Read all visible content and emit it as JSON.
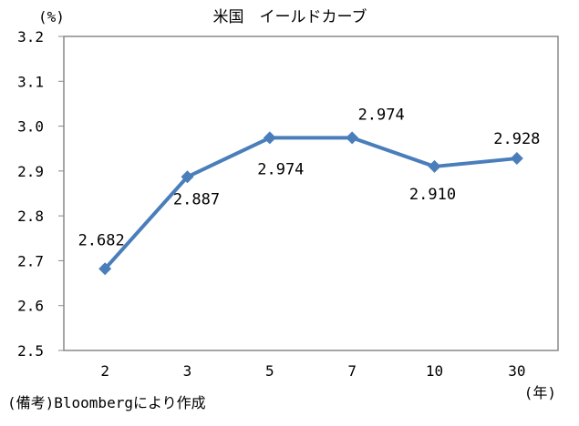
{
  "chart_data": {
    "type": "line",
    "title": "米国　イールドカーブ",
    "ylabel": "(%)",
    "xlabel": "(年)",
    "categories": [
      "2",
      "3",
      "5",
      "7",
      "10",
      "30"
    ],
    "series": [
      {
        "values": [
          2.682,
          2.887,
          2.974,
          2.974,
          2.91,
          2.928
        ]
      }
    ],
    "data_labels": [
      "2.682",
      "2.887",
      "2.974",
      "2.974",
      "2.910",
      "2.928"
    ],
    "ylim": [
      2.5,
      3.2
    ],
    "yticks": [
      "2.5",
      "2.6",
      "2.7",
      "2.8",
      "2.9",
      "3.0",
      "3.1",
      "3.2"
    ],
    "grid": false,
    "legend": "none",
    "marker": "diamond",
    "color": "#4a7ebb"
  },
  "source_note": "(備考)Bloombergにより作成"
}
